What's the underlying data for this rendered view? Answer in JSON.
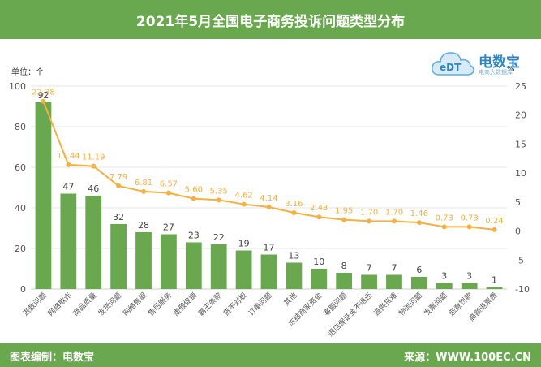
{
  "header": {
    "title": "2021年5月全国电子商务投诉问题类型分布"
  },
  "labels": {
    "left_unit": "单位：个",
    "right_unit": "%"
  },
  "logo": {
    "name": "电数宝",
    "badge": "eDT",
    "tagline": "电商大数据库",
    "icon": "cloud-logo-icon"
  },
  "footer": {
    "left": "图表编制：电数宝",
    "right": "来源：WWW.100EC.CN"
  },
  "colors": {
    "accent": "#6aa84f",
    "bar": "#6aa84f",
    "line": "#f5b041",
    "axis_text": "#555555",
    "grid": "#e6e6e6"
  },
  "chart_data": {
    "type": "bar",
    "title": "2021年5月全国电子商务投诉问题类型分布",
    "categories": [
      "退款问题",
      "网络欺诈",
      "商品质量",
      "发货问题",
      "网络售假",
      "售后服务",
      "虚假促销",
      "霸王条款",
      "货不对板",
      "订单问题",
      "其他",
      "冻结商家资金",
      "客服问题",
      "退店保证金不退还",
      "退换货难",
      "物流问题",
      "发票问题",
      "恶意罚款",
      "高额退票费"
    ],
    "series": [
      {
        "type": "bar",
        "axis": "left",
        "values": [
          92,
          47,
          46,
          32,
          28,
          27,
          23,
          22,
          19,
          17,
          13,
          10,
          8,
          7,
          7,
          6,
          3,
          3,
          1
        ]
      },
      {
        "type": "line",
        "axis": "right",
        "values": [
          22.38,
          11.44,
          11.19,
          7.79,
          6.81,
          6.57,
          5.6,
          5.35,
          4.62,
          4.14,
          3.16,
          2.43,
          1.95,
          1.7,
          1.7,
          1.46,
          0.73,
          0.73,
          0.24
        ]
      }
    ],
    "ylim_left": [
      0,
      100
    ],
    "yticks_left": [
      0,
      20,
      40,
      60,
      80,
      100
    ],
    "ylim_right": [
      -10,
      25
    ],
    "yticks_right": [
      -10,
      -5,
      0,
      5,
      10,
      15,
      20,
      25
    ],
    "grid": true,
    "legend": "none"
  }
}
